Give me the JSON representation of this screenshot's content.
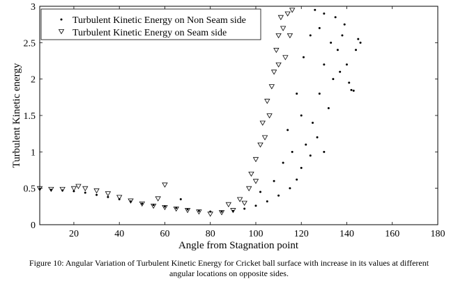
{
  "chart_data": {
    "type": "scatter",
    "title": "",
    "xlabel": "Angle from Stagnation point",
    "ylabel": "Turbulent Kinetic energy",
    "xlim": [
      5,
      180
    ],
    "ylim": [
      0,
      3
    ],
    "x_ticks": [
      "20",
      "40",
      "60",
      "80",
      "100",
      "120",
      "140",
      "160",
      "180"
    ],
    "x_tick_values": [
      20,
      40,
      60,
      80,
      100,
      120,
      140,
      160,
      180
    ],
    "y_ticks": [
      "0",
      "0.5",
      "1",
      "1.5",
      "2",
      "2.5",
      "3"
    ],
    "y_tick_values": [
      0,
      0.5,
      1,
      1.5,
      2,
      2.5,
      3
    ],
    "grid": false,
    "legend_position": "top-left",
    "series": [
      {
        "name": "Turbulent Kinetic Energy on Non Seam side",
        "marker": "dot",
        "points": [
          [
            5,
            0.49
          ],
          [
            10,
            0.48
          ],
          [
            15,
            0.47
          ],
          [
            20,
            0.46
          ],
          [
            25,
            0.44
          ],
          [
            30,
            0.41
          ],
          [
            35,
            0.38
          ],
          [
            40,
            0.35
          ],
          [
            45,
            0.32
          ],
          [
            50,
            0.29
          ],
          [
            55,
            0.27
          ],
          [
            60,
            0.25
          ],
          [
            65,
            0.23
          ],
          [
            67,
            0.35
          ],
          [
            70,
            0.21
          ],
          [
            75,
            0.19
          ],
          [
            80,
            0.18
          ],
          [
            85,
            0.18
          ],
          [
            90,
            0.19
          ],
          [
            95,
            0.22
          ],
          [
            100,
            0.26
          ],
          [
            102,
            0.45
          ],
          [
            105,
            0.32
          ],
          [
            108,
            0.6
          ],
          [
            110,
            0.4
          ],
          [
            112,
            0.85
          ],
          [
            114,
            1.3
          ],
          [
            115,
            0.5
          ],
          [
            116,
            1.0
          ],
          [
            118,
            0.62
          ],
          [
            118,
            1.8
          ],
          [
            120,
            0.78
          ],
          [
            120,
            1.5
          ],
          [
            121,
            2.3
          ],
          [
            122,
            1.1
          ],
          [
            124,
            0.95
          ],
          [
            124,
            2.6
          ],
          [
            125,
            1.4
          ],
          [
            126,
            2.95
          ],
          [
            127,
            1.2
          ],
          [
            128,
            1.8
          ],
          [
            128,
            2.7
          ],
          [
            130,
            1.0
          ],
          [
            130,
            2.2
          ],
          [
            130,
            2.9
          ],
          [
            132,
            1.6
          ],
          [
            133,
            2.5
          ],
          [
            134,
            2.0
          ],
          [
            135,
            2.85
          ],
          [
            136,
            2.4
          ],
          [
            137,
            2.1
          ],
          [
            138,
            2.6
          ],
          [
            139,
            2.75
          ],
          [
            140,
            2.2
          ],
          [
            141,
            1.95
          ],
          [
            142,
            1.85
          ],
          [
            143,
            1.84
          ],
          [
            144,
            2.4
          ],
          [
            145,
            2.55
          ],
          [
            146,
            2.5
          ]
        ]
      },
      {
        "name": "Turbulent Kinetic Energy on Seam side",
        "marker": "triangle-down",
        "points": [
          [
            5,
            0.5
          ],
          [
            10,
            0.49
          ],
          [
            15,
            0.49
          ],
          [
            20,
            0.5
          ],
          [
            22,
            0.53
          ],
          [
            25,
            0.5
          ],
          [
            30,
            0.47
          ],
          [
            35,
            0.43
          ],
          [
            40,
            0.38
          ],
          [
            45,
            0.33
          ],
          [
            50,
            0.29
          ],
          [
            55,
            0.26
          ],
          [
            57,
            0.36
          ],
          [
            60,
            0.55
          ],
          [
            60,
            0.24
          ],
          [
            65,
            0.22
          ],
          [
            70,
            0.2
          ],
          [
            75,
            0.18
          ],
          [
            80,
            0.15
          ],
          [
            85,
            0.17
          ],
          [
            88,
            0.28
          ],
          [
            90,
            0.2
          ],
          [
            93,
            0.35
          ],
          [
            95,
            0.3
          ],
          [
            97,
            0.5
          ],
          [
            98,
            0.7
          ],
          [
            100,
            0.6
          ],
          [
            100,
            0.9
          ],
          [
            102,
            1.1
          ],
          [
            103,
            1.4
          ],
          [
            104,
            1.2
          ],
          [
            105,
            1.7
          ],
          [
            106,
            1.5
          ],
          [
            107,
            1.9
          ],
          [
            108,
            2.1
          ],
          [
            109,
            2.4
          ],
          [
            110,
            2.6
          ],
          [
            110,
            2.2
          ],
          [
            111,
            2.85
          ],
          [
            112,
            2.7
          ],
          [
            113,
            2.3
          ],
          [
            114,
            2.9
          ],
          [
            115,
            2.6
          ],
          [
            116,
            2.95
          ]
        ]
      }
    ]
  },
  "caption": {
    "line1": "Figure 10: Angular Variation of Turbulent Kinetic Energy for Cricket ball surface with increase in its values at different",
    "line2": "angular locations on opposite sides."
  }
}
